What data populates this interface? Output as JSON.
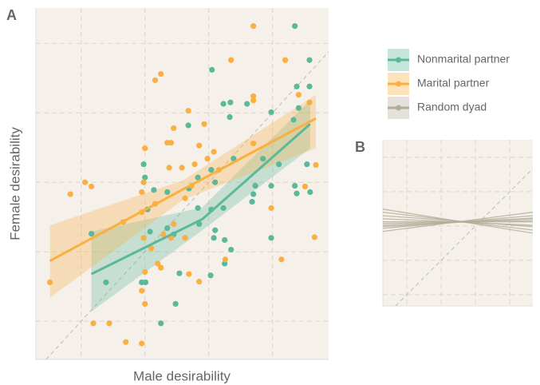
{
  "chart_data": [
    {
      "type": "scatter",
      "panel_label": "A",
      "x_label": "Male desirability",
      "y_label": "Female desirability",
      "xlim": [
        0.29,
        4.88
      ],
      "ylim": [
        0.45,
        5.51
      ],
      "xticks": [
        1,
        2,
        3,
        4
      ],
      "yticks": [
        1,
        2,
        3,
        4,
        5
      ],
      "grid": true,
      "series": [
        {
          "name": "Nonmarital partner",
          "color": "#5bb89a",
          "x": [
            4.35,
            3.05,
            4.58,
            4.38,
            4.58,
            3.23,
            3.34,
            3.6,
            2.68,
            3.33,
            4.33,
            3.98,
            4.41,
            1.98,
            2.0,
            3.04,
            3.39,
            3.1,
            3.85,
            2.14,
            2.35,
            2.69,
            2.83,
            3.73,
            3.7,
            3.68,
            3.98,
            4.35,
            4.38,
            4.59,
            2.83,
            3.04,
            3.23,
            2.04,
            1.16,
            2.35,
            2.85,
            3.1,
            3.08,
            3.25,
            2.45,
            2.08,
            3.35,
            3.98,
            3.25,
            2.54,
            3.03,
            1.95,
            2.01,
            1.39,
            2.48,
            2.25,
            4.1,
            4.54
          ],
          "y": [
            5.25,
            4.62,
            4.76,
            4.38,
            4.38,
            4.13,
            4.15,
            4.13,
            3.82,
            3.94,
            3.9,
            4.01,
            4.07,
            3.26,
            3.07,
            3.18,
            3.34,
            3.0,
            3.34,
            2.89,
            2.86,
            2.91,
            3.07,
            2.95,
            2.83,
            2.72,
            2.95,
            2.95,
            2.84,
            2.86,
            2.63,
            2.61,
            2.63,
            2.61,
            2.26,
            2.34,
            2.4,
            2.31,
            2.2,
            2.17,
            2.25,
            2.29,
            2.03,
            2.2,
            1.83,
            1.69,
            1.66,
            1.56,
            1.56,
            1.56,
            1.25,
            0.97,
            3.26,
            3.26
          ],
          "fit": {
            "x": [
              1.16,
              2.9,
              4.59
            ],
            "y": [
              1.68,
              2.47,
              3.84
            ],
            "ci_lower": [
              1.14,
              2.31,
              3.49
            ],
            "ci_upper": [
              2.29,
              2.64,
              4.18
            ]
          }
        },
        {
          "name": "Marital partner",
          "color": "#f9b040",
          "x": [
            3.7,
            3.35,
            4.2,
            2.25,
            2.16,
            3.7,
            3.7,
            4.41,
            2.68,
            4.58,
            2.45,
            2.93,
            2.35,
            2.41,
            2.0,
            2.85,
            3.08,
            2.98,
            2.78,
            2.38,
            2.58,
            1.98,
            2.73,
            3.16,
            3.7,
            4.68,
            1.06,
            1.16,
            0.83,
            1.95,
            2.16,
            2.63,
            1.95,
            1.66,
            2.45,
            2.29,
            1.98,
            2.41,
            2.1,
            2.63,
            3.98,
            4.66,
            3.26,
            4.14,
            2.2,
            2.25,
            2.69,
            2.85,
            2.0,
            0.51,
            2.0,
            1.19,
            1.44,
            1.7,
            1.95,
            1.95,
            4.51
          ],
          "y": [
            5.25,
            4.76,
            4.76,
            4.56,
            4.47,
            4.24,
            4.18,
            4.26,
            4.03,
            4.15,
            3.78,
            3.84,
            3.57,
            3.57,
            3.49,
            3.53,
            3.44,
            3.34,
            3.26,
            3.21,
            3.21,
            3.0,
            2.95,
            3.18,
            3.56,
            3.25,
            3.0,
            2.94,
            2.83,
            2.86,
            2.69,
            2.77,
            2.57,
            2.43,
            2.4,
            2.25,
            2.2,
            2.2,
            2.05,
            2.2,
            2.63,
            2.21,
            1.89,
            1.89,
            1.83,
            1.77,
            1.68,
            1.57,
            1.71,
            1.56,
            1.25,
            0.97,
            0.97,
            0.7,
            0.68,
            1.44,
            2.94
          ],
          "fit": {
            "x": [
              0.51,
              2.6,
              4.68
            ],
            "y": [
              1.87,
              2.9,
              3.92
            ],
            "ci_lower": [
              1.34,
              2.75,
              3.49
            ],
            "ci_upper": [
              2.38,
              3.03,
              4.26
            ]
          }
        }
      ]
    },
    {
      "type": "line",
      "panel_label": "B",
      "xlim": [
        0.3,
        4.67
      ],
      "ylim": [
        0.67,
        5.51
      ],
      "xticks": [
        1,
        2,
        3,
        4
      ],
      "yticks": [
        1,
        2,
        3,
        4,
        5
      ],
      "grid": true,
      "series": [
        {
          "name": "Random dyad",
          "color": "#b3ad98",
          "lines": [
            {
              "x": [
                0.3,
                4.67
              ],
              "y": [
                3.49,
                2.79
              ]
            },
            {
              "x": [
                0.3,
                4.67
              ],
              "y": [
                3.4,
                2.88
              ]
            },
            {
              "x": [
                0.3,
                4.67
              ],
              "y": [
                3.3,
                2.98
              ]
            },
            {
              "x": [
                0.3,
                4.67
              ],
              "y": [
                3.21,
                3.02
              ]
            },
            {
              "x": [
                0.3,
                4.67
              ],
              "y": [
                3.12,
                3.12
              ]
            },
            {
              "x": [
                0.3,
                4.67
              ],
              "y": [
                3.02,
                3.21
              ]
            },
            {
              "x": [
                0.3,
                4.67
              ],
              "y": [
                2.93,
                3.3
              ]
            },
            {
              "x": [
                0.3,
                4.67
              ],
              "y": [
                2.84,
                3.4
              ]
            },
            {
              "x": [
                0.3,
                4.67
              ],
              "y": [
                3.07,
                3.16
              ]
            },
            {
              "x": [
                0.3,
                4.67
              ],
              "y": [
                2.98,
                3.23
              ]
            }
          ]
        }
      ]
    }
  ]
}
